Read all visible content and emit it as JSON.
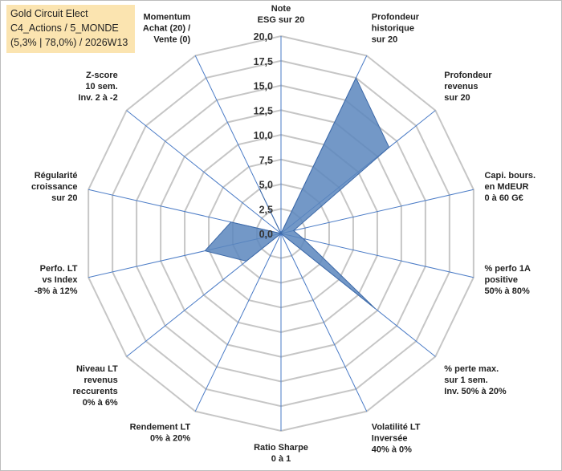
{
  "title_box": {
    "line1": "Gold Circuit Elect",
    "line2": "C4_Actions / 5_MONDE",
    "line3": "(5,3% | 78,0%) / 2026W13"
  },
  "chart_data": {
    "type": "radar",
    "categories": [
      [
        "Note",
        "ESG sur 20"
      ],
      [
        "Profondeur",
        "historique",
        "sur 20"
      ],
      [
        "Profondeur",
        "revenus",
        "sur 20"
      ],
      [
        "Capi. bours.",
        "en MdEUR",
        "0 à 60 G€"
      ],
      [
        "% perfo 1A",
        "positive",
        "50% à 80%"
      ],
      [
        "% perte max.",
        "sur 1 sem.",
        "Inv. 50% à 20%"
      ],
      [
        "Volatilité LT",
        "Inversée",
        "40% à 0%"
      ],
      [
        "Ratio Sharpe",
        "0 à 1"
      ],
      [
        "Rendement LT",
        "0% à 20%"
      ],
      [
        "Niveau LT",
        "revenus",
        "reccurents",
        "0% à 6%"
      ],
      [
        "Perfo. LT",
        "vs Index",
        "-8% à 12%"
      ],
      [
        "Régularité",
        "croissance",
        "sur 20"
      ],
      [
        "Z-score",
        "10 sem.",
        "Inv. 2 à -2"
      ],
      [
        "Momentum",
        "Achat (20) /",
        "Vente (0)"
      ]
    ],
    "values": [
      0,
      17.5,
      14.0,
      1.3,
      2.3,
      12.2,
      0,
      0,
      0,
      4.5,
      7.9,
      5.2,
      0,
      5.0
    ],
    "range": [
      0,
      20
    ],
    "ticks": [
      "0,0",
      "2,5",
      "5,0",
      "7,5",
      "10,0",
      "12,5",
      "15,0",
      "17,5",
      "20,0"
    ],
    "colors": {
      "fill": "#5b86bd",
      "stroke": "#3e6aa8",
      "grid": "#c6c6c6",
      "spoke": "#4a7bc6"
    }
  }
}
